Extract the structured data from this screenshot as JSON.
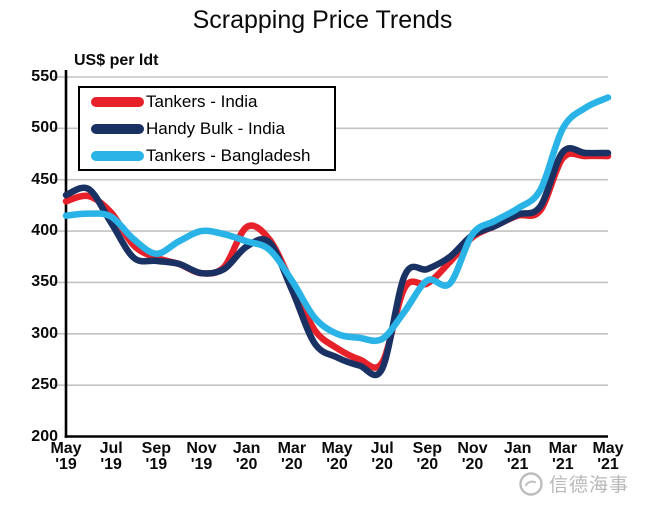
{
  "title": "Scrapping Price Trends",
  "watermark": {
    "text": "信德海事"
  },
  "colors": {
    "grid": "#c3c3c3",
    "axis": "#000000",
    "watermark_gray": "#b3b3b3"
  },
  "chart_data": {
    "type": "line",
    "title": "Scrapping Price Trends",
    "ylabel": "US$ per ldt",
    "xlabel": "",
    "ylim": [
      200,
      550
    ],
    "ytick_step": 50,
    "yticks": [
      550,
      500,
      450,
      400,
      350,
      300,
      250,
      200
    ],
    "grid": true,
    "legend_position": "top-left",
    "xtick_every": 2,
    "x": [
      "May '19",
      "Jun '19",
      "Jul '19",
      "Aug '19",
      "Sep '19",
      "Oct '19",
      "Nov '19",
      "Dec '19",
      "Jan '20",
      "Feb '20",
      "Mar '20",
      "Apr '20",
      "May '20",
      "Jun '20",
      "Jul '20",
      "Aug '20",
      "Sep '20",
      "Oct '20",
      "Nov '20",
      "Dec '20",
      "Jan '21",
      "Feb '21",
      "Mar '21",
      "Apr '21",
      "May '21"
    ],
    "series": [
      {
        "name": "Tankers - India",
        "color": "#e62129",
        "values": [
          429,
          434,
          418,
          386,
          374,
          368,
          359,
          365,
          404,
          392,
          349,
          304,
          286,
          275,
          272,
          345,
          349,
          370,
          394,
          405,
          415,
          420,
          471,
          473,
          473
        ]
      },
      {
        "name": "Handy Bulk - India",
        "color": "#1a3263",
        "values": [
          435,
          441,
          408,
          374,
          371,
          368,
          359,
          363,
          385,
          389,
          343,
          291,
          277,
          269,
          266,
          357,
          363,
          375,
          396,
          405,
          416,
          424,
          477,
          476,
          476
        ]
      },
      {
        "name": "Tankers - Bangladesh",
        "color": "#29b3e6",
        "values": [
          415,
          417,
          414,
          392,
          378,
          390,
          400,
          397,
          390,
          382,
          352,
          316,
          300,
          296,
          295,
          322,
          352,
          349,
          397,
          410,
          422,
          440,
          500,
          520,
          530
        ]
      }
    ]
  }
}
